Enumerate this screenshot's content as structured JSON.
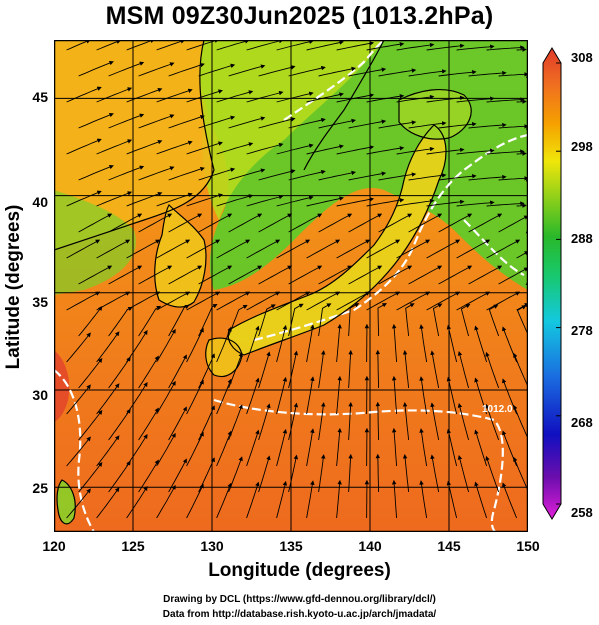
{
  "title": "MSM 09Z30Jun2025 (1013.2hPa)",
  "map": {
    "xlabel": "Longitude (degrees)",
    "ylabel": "Latitude (degrees)",
    "lon_range": [
      120,
      150
    ],
    "lat_range": [
      22.7,
      48
    ],
    "x_ticks": [
      "120",
      "125",
      "130",
      "135",
      "140",
      "145",
      "150"
    ],
    "y_ticks": [
      "25",
      "30",
      "35",
      "40",
      "45"
    ],
    "contour_label": "1012.0",
    "field": "temperature shading with streamlines"
  },
  "colorbar": {
    "ticks": [
      "308",
      "298",
      "288",
      "278",
      "268",
      "258"
    ],
    "min": 258,
    "max": 308,
    "colors": [
      "#e01fd8",
      "#6a0dad",
      "#1010c0",
      "#1a6be0",
      "#14c8e0",
      "#18c86a",
      "#2ab82a",
      "#8ccf1a",
      "#f0e60a",
      "#f5a000",
      "#f07020",
      "#e03a2a"
    ]
  },
  "credits": {
    "line1": "Drawing by DCL (https://www.gfd-dennou.org/library/dcl/)",
    "line2": "Data from http://database.rish.kyoto-u.ac.jp/arch/jmadata/"
  }
}
